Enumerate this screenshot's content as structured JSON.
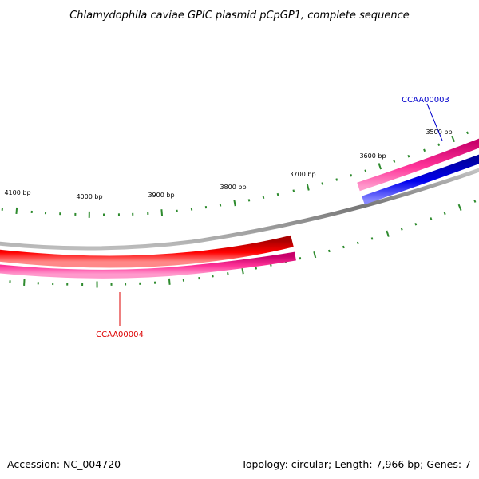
{
  "title": "Chlamydophila caviae GPIC plasmid pCpGP1, complete sequence",
  "accession": "Accession: NC_004720",
  "summary": "Topology: circular; Length: 7,966 bp; Genes: 7",
  "tick_labels": [
    "4100 bp",
    "4000 bp",
    "3900 bp",
    "3800 bp",
    "3700 bp",
    "3600 bp",
    "3500 bp"
  ],
  "genes": [
    {
      "name": "CCAA00003",
      "color": "#0000cc"
    },
    {
      "name": "CCAA00004",
      "color": "#dd0000"
    }
  ],
  "colors": {
    "backbone": "#888888",
    "tick": "#2e8b2e",
    "cds_strand": "#ff3399",
    "gene_forward": "#0000ee",
    "gene_reverse": "#ff0000"
  }
}
